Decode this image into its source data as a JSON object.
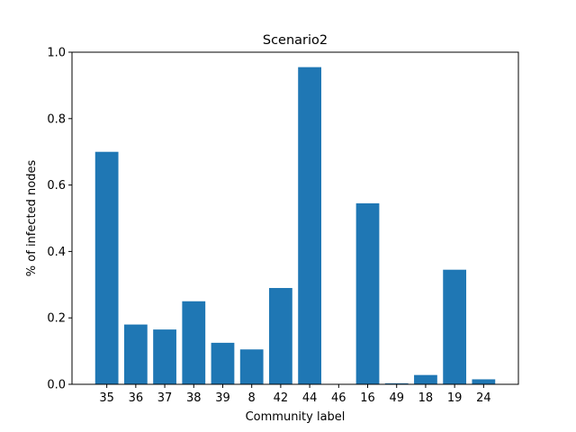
{
  "chart_data": {
    "type": "bar",
    "title": "Scenario2",
    "xlabel": "Community label",
    "ylabel": "% of infected nodes",
    "categories": [
      "35",
      "36",
      "37",
      "38",
      "39",
      "8",
      "42",
      "44",
      "46",
      "16",
      "49",
      "18",
      "19",
      "24"
    ],
    "values": [
      0.7,
      0.18,
      0.165,
      0.25,
      0.125,
      0.105,
      0.29,
      0.955,
      0.0,
      0.545,
      0.003,
      0.028,
      0.345,
      0.015
    ],
    "ylim": [
      0,
      1.0
    ],
    "yticks": [
      "0.0",
      "0.2",
      "0.4",
      "0.6",
      "0.8",
      "1.0"
    ],
    "bar_color": "#1f77b4",
    "grid": false
  }
}
